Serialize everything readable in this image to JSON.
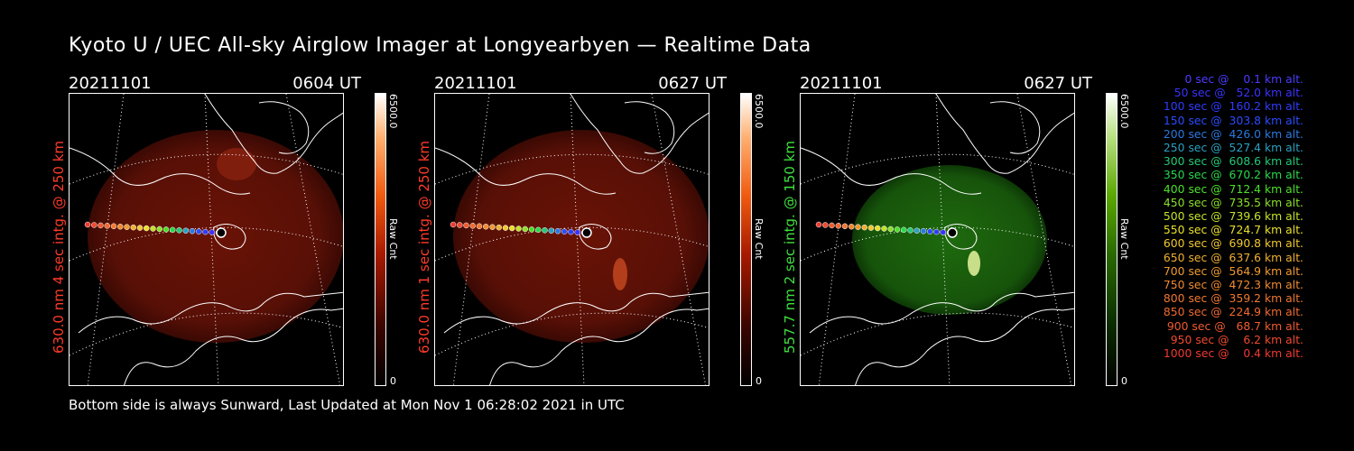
{
  "title": "Kyoto U / UEC All-sky Airglow Imager at Longyearbyen — Realtime Data",
  "footer": "Bottom side is always Sunward, Last Updated at Mon Nov  1 06:28:02 2021 in UTC",
  "panels": [
    {
      "date": "20211101",
      "time": "0604 UT",
      "side_label": "630.0 nm 4 sec intg. @ 250 km",
      "label_color": "#ff3b2a",
      "cbar_max": "6500.0",
      "cbar_min": "0",
      "cbar_unit": "Raw Cnt",
      "scheme": "red"
    },
    {
      "date": "20211101",
      "time": "0627 UT",
      "side_label": "630.0 nm 1 sec intg. @ 250 km",
      "label_color": "#ff3b2a",
      "cbar_max": "6500.0",
      "cbar_min": "0",
      "cbar_unit": "Raw Cnt",
      "scheme": "red"
    },
    {
      "date": "20211101",
      "time": "0627 UT",
      "side_label": "557.7 nm 2 sec intg. @ 150 km",
      "label_color": "#3fe03f",
      "cbar_max": "6500.0",
      "cbar_min": "0",
      "cbar_unit": "Raw Cnt",
      "scheme": "green"
    }
  ],
  "legend": [
    {
      "text": "   0 sec @    0.1 km alt.",
      "color": "#4b3cff"
    },
    {
      "text": "  50 sec @   52.0 km alt.",
      "color": "#3a32ff"
    },
    {
      "text": " 100 sec @  160.2 km alt.",
      "color": "#2f3cff"
    },
    {
      "text": " 150 sec @  303.8 km alt.",
      "color": "#2a4cff"
    },
    {
      "text": " 200 sec @  426.0 km alt.",
      "color": "#2a78e0"
    },
    {
      "text": " 250 sec @  527.4 km alt.",
      "color": "#2aa0c0"
    },
    {
      "text": " 300 sec @  608.6 km alt.",
      "color": "#23c878"
    },
    {
      "text": " 350 sec @  670.2 km alt.",
      "color": "#2ad84a"
    },
    {
      "text": " 400 sec @  712.4 km alt.",
      "color": "#4be02a"
    },
    {
      "text": " 450 sec @  735.5 km alt.",
      "color": "#8ae02a"
    },
    {
      "text": " 500 sec @  739.6 km alt.",
      "color": "#c4e22a"
    },
    {
      "text": " 550 sec @  724.7 km alt.",
      "color": "#e8e02a"
    },
    {
      "text": " 600 sec @  690.8 km alt.",
      "color": "#f0c830"
    },
    {
      "text": " 650 sec @  637.6 km alt.",
      "color": "#f0b030"
    },
    {
      "text": " 700 sec @  564.9 km alt.",
      "color": "#f09a30"
    },
    {
      "text": " 750 sec @  472.3 km alt.",
      "color": "#f08a30"
    },
    {
      "text": " 800 sec @  359.2 km alt.",
      "color": "#f07830"
    },
    {
      "text": " 850 sec @  224.9 km alt.",
      "color": "#f06a30"
    },
    {
      "text": " 900 sec @   68.7 km alt.",
      "color": "#f05a30"
    },
    {
      "text": " 950 sec @    6.2 km alt.",
      "color": "#f04a30"
    },
    {
      "text": "1000 sec @    0.4 km alt.",
      "color": "#f03a30"
    }
  ]
}
